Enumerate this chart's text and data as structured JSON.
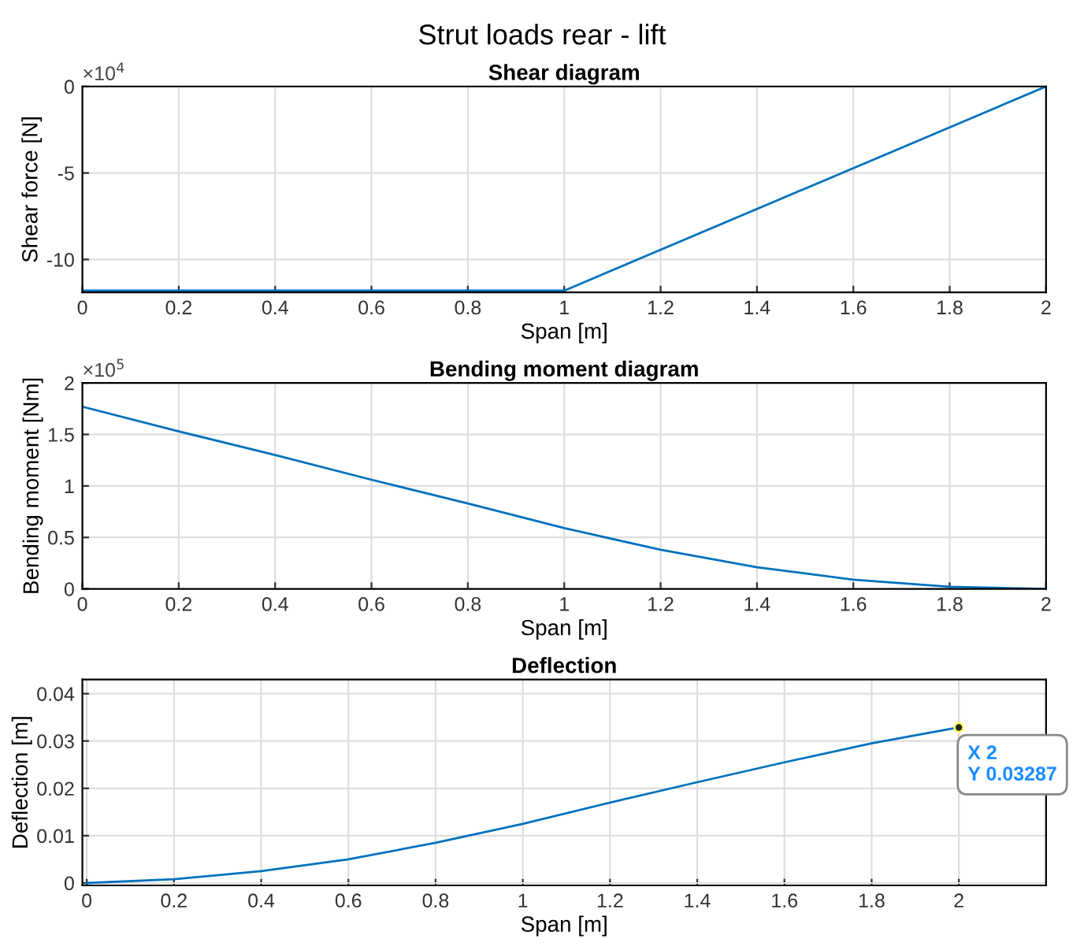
{
  "chart_data": [
    {
      "type": "line",
      "title": "Shear diagram",
      "xlabel": "Span [m]",
      "ylabel": "Shear force [N]",
      "annotations": [
        "Strut loads rear - lift",
        "×10$^{4}$"
      ],
      "grid": true,
      "marker": "none",
      "line_style": "solid",
      "xlim": [
        0,
        2
      ],
      "xticks": [
        0,
        0.2,
        0.4,
        0.6,
        0.8,
        1,
        1.2,
        1.4,
        1.6,
        1.8,
        2
      ],
      "ylim": [
        -11.9,
        0
      ],
      "yticks": [
        -10,
        -5,
        0
      ],
      "series": [
        {
          "color": "#0072bd",
          "x": [
            0,
            1,
            2
          ],
          "values": [
            -11.8,
            -11.8,
            0
          ]
        }
      ]
    },
    {
      "type": "line",
      "title": "Bending moment diagram",
      "xlabel": "Span [m]",
      "ylabel": "Bending moment [Nm]",
      "annotations": [
        "×10$^{5}$"
      ],
      "grid": true,
      "marker": "none",
      "line_style": "solid",
      "xlim": [
        0,
        2
      ],
      "xticks": [
        0,
        0.2,
        0.4,
        0.6,
        0.8,
        1,
        1.2,
        1.4,
        1.6,
        1.8,
        2
      ],
      "ylim": [
        0,
        2
      ],
      "yticks": [
        0,
        0.5,
        1,
        1.5,
        2
      ],
      "series": [
        {
          "color": "#0072bd",
          "x": [
            0,
            0.2,
            0.4,
            0.6,
            0.8,
            1,
            1.2,
            1.4,
            1.6,
            1.8,
            2
          ],
          "values": [
            1.77,
            1.53,
            1.3,
            1.06,
            0.83,
            0.59,
            0.38,
            0.21,
            0.09,
            0.02,
            0
          ]
        }
      ]
    },
    {
      "type": "line",
      "title": "Deflection",
      "xlabel": "Span [m]",
      "ylabel": "Deflection [m]",
      "annotations": [
        {
          "text": "X 2\nY 0.03287",
          "x": 2,
          "y": 0.03287
        }
      ],
      "grid": true,
      "marker": "none",
      "line_style": "solid",
      "xlim": [
        -0.01,
        2.2
      ],
      "xticks": [
        0,
        0.2,
        0.4,
        0.6,
        0.8,
        1,
        1.2,
        1.4,
        1.6,
        1.8,
        2
      ],
      "ylim": [
        -0.0005,
        0.043
      ],
      "yticks": [
        0,
        0.01,
        0.02,
        0.03,
        0.04
      ],
      "series": [
        {
          "color": "#0072bd",
          "x": [
            0,
            0.2,
            0.4,
            0.6,
            0.8,
            1,
            1.2,
            1.4,
            1.6,
            1.8,
            2
          ],
          "values": [
            0,
            0.0008,
            0.0025,
            0.005,
            0.0085,
            0.0125,
            0.017,
            0.0213,
            0.0255,
            0.0295,
            0.03287
          ]
        }
      ]
    }
  ]
}
